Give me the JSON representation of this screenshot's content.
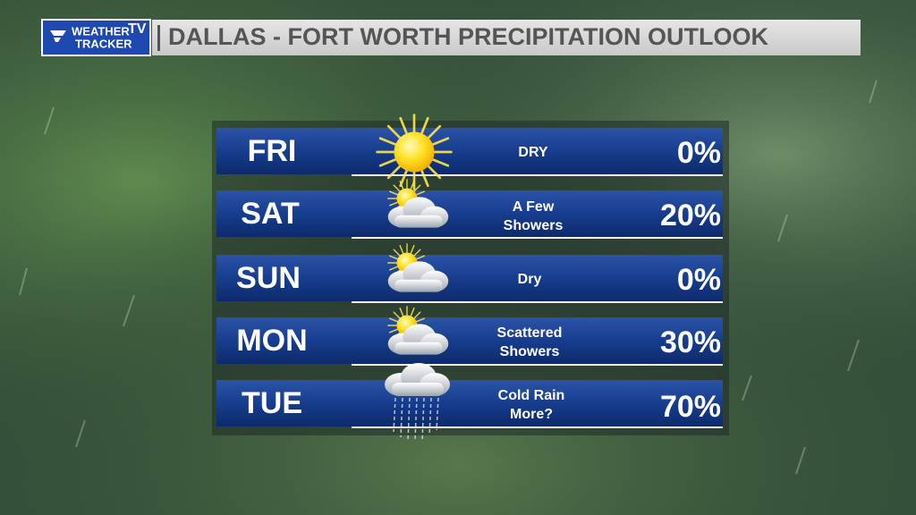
{
  "header": {
    "logo": {
      "line1": "WEATHER",
      "badge": "TV",
      "line2": "TRACKER"
    },
    "title": "DALLAS - FORT WORTH PRECIPITATION OUTLOOK"
  },
  "rows": [
    {
      "day": "FRI",
      "condition": [
        "DRY"
      ],
      "chance": "0%"
    },
    {
      "day": "SAT",
      "condition": [
        "A Few",
        "Showers"
      ],
      "chance": "20%"
    },
    {
      "day": "SUN",
      "condition": [
        "Dry"
      ],
      "chance": "0%"
    },
    {
      "day": "MON",
      "condition": [
        "Scattered",
        "Showers"
      ],
      "chance": "30%"
    },
    {
      "day": "TUE",
      "condition": [
        "Cold Rain",
        "More?"
      ],
      "chance": "70%"
    }
  ]
}
